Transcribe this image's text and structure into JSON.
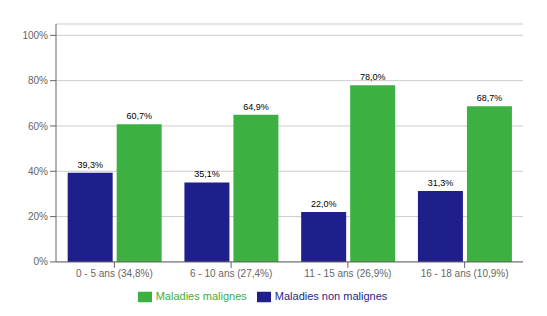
{
  "chart_data": {
    "type": "bar",
    "categories": [
      "0 - 5 ans (34,8%)",
      "6 - 10 ans (27,4%)",
      "11 - 15 ans (26,9%)",
      "16 - 18 ans (10,9%)"
    ],
    "series": [
      {
        "name": "Maladies non malignes",
        "color": "#1F1F8C",
        "values": [
          39.3,
          35.1,
          22.0,
          31.3
        ],
        "value_labels": [
          "39,3%",
          "35,1%",
          "22,0%",
          "31,3%"
        ]
      },
      {
        "name": "Maladies malignes",
        "color": "#3CB040",
        "values": [
          60.7,
          64.9,
          78.0,
          68.7
        ],
        "value_labels": [
          "60,7%",
          "64,9%",
          "78,0%",
          "68,7%"
        ]
      }
    ],
    "ylim": [
      0,
      105
    ],
    "yticks": [
      {
        "value": 0,
        "label": "0%"
      },
      {
        "value": 20,
        "label": "20%"
      },
      {
        "value": 40,
        "label": "40%"
      },
      {
        "value": 60,
        "label": "60%"
      },
      {
        "value": 80,
        "label": "80%"
      },
      {
        "value": 100,
        "label": "100%"
      }
    ],
    "grid": true,
    "data_labels": true,
    "legend": "bottom"
  }
}
